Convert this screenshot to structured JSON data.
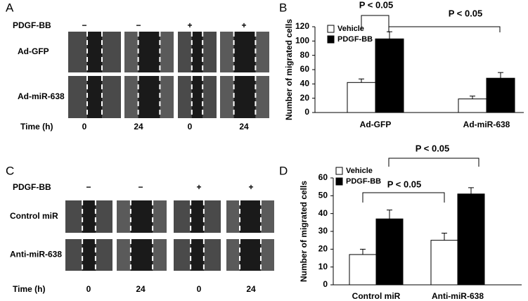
{
  "panels": [
    {
      "label": "A",
      "treatment_label": "PDGF-BB",
      "treatments": [
        "−",
        "−",
        "+",
        "+"
      ],
      "rows": [
        "Ad-GFP",
        "Ad-miR-638"
      ],
      "time_label": "Time (h)",
      "times": [
        0,
        24,
        0,
        24
      ]
    },
    {
      "label": "C",
      "treatment_label": "PDGF-BB",
      "treatments": [
        "−",
        "−",
        "+",
        "+"
      ],
      "rows": [
        "Control miR",
        "Anti-miR-638"
      ],
      "time_label": "Time (h)",
      "times": [
        0,
        24,
        0,
        24
      ]
    }
  ],
  "chart_data": [
    {
      "type": "bar",
      "panel_label": "B",
      "y_label": "Number of migrated cells",
      "categories": [
        "Ad-GFP",
        "Ad-miR-638"
      ],
      "series": [
        {
          "name": "Vehicle",
          "color": "#ffffff",
          "values": [
            42,
            19
          ],
          "errors": [
            5,
            4
          ]
        },
        {
          "name": "PDGF-BB",
          "color": "#000000",
          "values": [
            103,
            48
          ],
          "errors": [
            10,
            8
          ]
        }
      ],
      "ylim": [
        0,
        120
      ],
      "yticks": [
        0,
        20,
        40,
        60,
        80,
        100,
        120
      ],
      "annotations": [
        "P < 0.05",
        "P < 0.05"
      ]
    },
    {
      "type": "bar",
      "panel_label": "D",
      "y_label": "Number of migrated cells",
      "categories": [
        "Control miR",
        "Anti-miR-638"
      ],
      "series": [
        {
          "name": "Vehicle",
          "color": "#ffffff",
          "values": [
            17,
            25
          ],
          "errors": [
            3,
            4
          ]
        },
        {
          "name": "PDGF-BB",
          "color": "#000000",
          "values": [
            37,
            51
          ],
          "errors": [
            5,
            3.5
          ]
        }
      ],
      "ylim": [
        0,
        60
      ],
      "yticks": [
        0,
        10,
        20,
        30,
        40,
        50,
        60
      ],
      "annotations": [
        "P < 0.05",
        "P < 0.05"
      ]
    }
  ]
}
